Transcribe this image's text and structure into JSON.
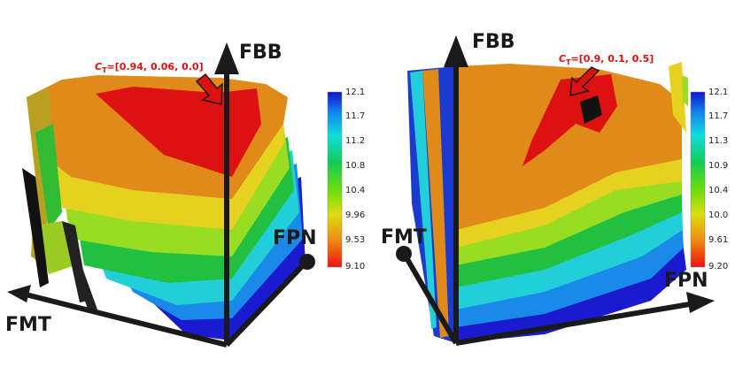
{
  "panels": [
    {
      "annotation": {
        "prefix": "C",
        "subscript": "T",
        "value": "=[0.94, 0.06, 0.0]"
      },
      "axes": {
        "up": "FBB",
        "right": "FPN",
        "left": "FMT"
      },
      "colorbar": {
        "ticks": [
          "12.1",
          "11.7",
          "11.2",
          "10.8",
          "10.4",
          "9.96",
          "9.53",
          "9.10"
        ]
      }
    },
    {
      "annotation": {
        "prefix": "C",
        "subscript": "T",
        "value": "=[0.9, 0.1, 0.5]"
      },
      "axes": {
        "up": "FBB",
        "left": "FMT",
        "right": "FPN"
      },
      "colorbar": {
        "ticks": [
          "12.1",
          "11.7",
          "11.3",
          "10.9",
          "10.4",
          "10.0",
          "9.61",
          "9.20"
        ]
      }
    }
  ],
  "colors": {
    "colormap": [
      "#ee1111",
      "#ee8811",
      "#dddd11",
      "#88dd11",
      "#11cc11",
      "#11dddd",
      "#1188ee",
      "#1111cc"
    ],
    "surface_top": "#e08a1a",
    "highlight": "#dd1111",
    "annotation": "#e01010",
    "axis": "#1a1a1a"
  }
}
